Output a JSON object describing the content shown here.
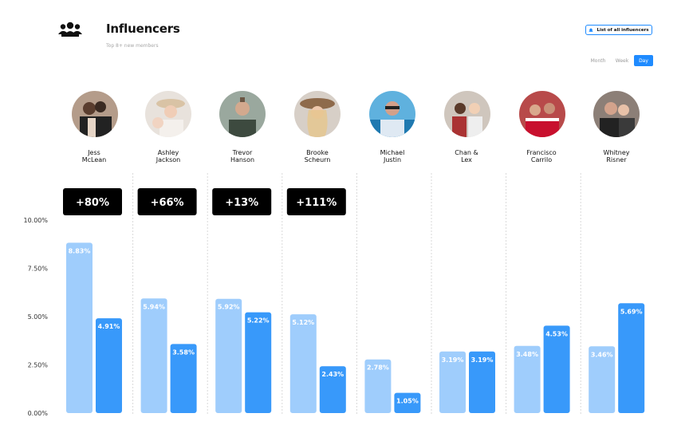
{
  "header": {
    "title": "Influencers",
    "subtitle": "Top 8+ new members",
    "icon": "group-icon",
    "list_button_label": "List of all influencers",
    "list_button_icon": "bell-icon"
  },
  "periods": {
    "month": "Month",
    "week": "Week",
    "day": "Day",
    "selected": "Day"
  },
  "influencers": [
    {
      "first": "Jess",
      "last": "McLean",
      "badge": "+80%"
    },
    {
      "first": "Ashley",
      "last": "Jackson",
      "badge": "+66%"
    },
    {
      "first": "Trevor",
      "last": "Hanson",
      "badge": "+13%"
    },
    {
      "first": "Brooke",
      "last": "Scheurn",
      "badge": "+111%"
    },
    {
      "first": "Michael",
      "last": "Justin",
      "badge": ""
    },
    {
      "first": "Chan &",
      "last": "Lex",
      "badge": ""
    },
    {
      "first": "Francisco",
      "last": "Carrilo",
      "badge": ""
    },
    {
      "first": "Whitney",
      "last": "Risner",
      "badge": ""
    }
  ],
  "colors": {
    "accent": "#1f8bff",
    "bar_light": "#9fcdfc",
    "bar_dark": "#3899fa",
    "badge_bg": "#000000"
  },
  "chart_data": {
    "type": "bar",
    "categories": [
      "Jess McLean",
      "Ashley Jackson",
      "Trevor Hanson",
      "Brooke Scheurn",
      "Michael Justin",
      "Chan & Lex",
      "Francisco Carrilo",
      "Whitney Risner"
    ],
    "series": [
      {
        "values": [
          8.83,
          5.94,
          5.92,
          5.12,
          2.78,
          3.19,
          3.48,
          3.46
        ],
        "labels": [
          "8.83%",
          "5.94%",
          "5.92%",
          "5.12%",
          "2.78%",
          "3.19%",
          "3.48%",
          "3.46%"
        ]
      },
      {
        "values": [
          4.91,
          3.58,
          5.22,
          2.43,
          1.05,
          3.19,
          4.53,
          5.69
        ],
        "labels": [
          "4.91%",
          "3.58%",
          "5.22%",
          "2.43%",
          "1.05%",
          "3.19%",
          "4.53%",
          "5.69%"
        ]
      }
    ],
    "ylim": [
      0,
      10
    ],
    "yticks": [
      0,
      2.5,
      5,
      7.5,
      10
    ],
    "ytick_labels": [
      "0.00%",
      "2.50%",
      "5.00%",
      "7.50%",
      "10.00%"
    ],
    "grid": false
  }
}
